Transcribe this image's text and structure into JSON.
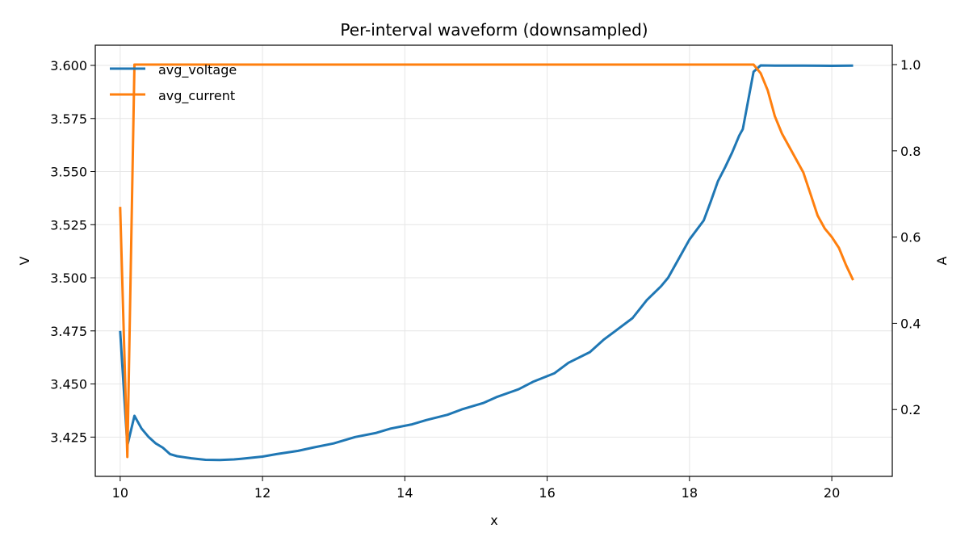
{
  "chart_data": {
    "type": "line",
    "title": "Per-interval waveform (downsampled)",
    "xlabel": "x",
    "ylabel_left": "V",
    "ylabel_right": "A",
    "xlim": [
      9.65,
      20.85
    ],
    "ylim_left": [
      3.4065,
      3.6095
    ],
    "ylim_right": [
      0.045,
      1.045
    ],
    "x_ticks": [
      "10",
      "12",
      "14",
      "16",
      "18",
      "20"
    ],
    "y_left_ticks": [
      "3.425",
      "3.450",
      "3.475",
      "3.500",
      "3.525",
      "3.550",
      "3.575",
      "3.600"
    ],
    "y_right_ticks": [
      "0.2",
      "0.4",
      "0.6",
      "0.8",
      "1.0"
    ],
    "grid": true,
    "legend_position": "top-left",
    "series": [
      {
        "name": "avg_voltage",
        "axis": "left",
        "color": "#1f77b4",
        "points": [
          [
            10.0,
            3.475
          ],
          [
            10.1,
            3.421
          ],
          [
            10.2,
            3.435
          ],
          [
            10.3,
            3.429
          ],
          [
            10.4,
            3.425
          ],
          [
            10.5,
            3.422
          ],
          [
            10.6,
            3.42
          ],
          [
            10.7,
            3.417
          ],
          [
            10.8,
            3.416
          ],
          [
            10.9,
            3.4155
          ],
          [
            11.0,
            3.415
          ],
          [
            11.2,
            3.4143
          ],
          [
            11.4,
            3.4142
          ],
          [
            11.6,
            3.4145
          ],
          [
            11.7,
            3.4148
          ],
          [
            12.0,
            3.4158
          ],
          [
            12.2,
            3.417
          ],
          [
            12.5,
            3.4185
          ],
          [
            12.7,
            3.42
          ],
          [
            13.0,
            3.422
          ],
          [
            13.1,
            3.423
          ],
          [
            13.3,
            3.425
          ],
          [
            13.6,
            3.427
          ],
          [
            13.8,
            3.429
          ],
          [
            14.1,
            3.431
          ],
          [
            14.3,
            3.433
          ],
          [
            14.6,
            3.4355
          ],
          [
            14.8,
            3.438
          ],
          [
            15.1,
            3.441
          ],
          [
            15.3,
            3.444
          ],
          [
            15.6,
            3.4475
          ],
          [
            15.8,
            3.451
          ],
          [
            16.1,
            3.455
          ],
          [
            16.3,
            3.46
          ],
          [
            16.6,
            3.465
          ],
          [
            16.8,
            3.471
          ],
          [
            17.0,
            3.476
          ],
          [
            17.2,
            3.481
          ],
          [
            17.4,
            3.4895
          ],
          [
            17.6,
            3.496
          ],
          [
            17.7,
            3.5
          ],
          [
            17.9,
            3.512
          ],
          [
            18.0,
            3.518
          ],
          [
            18.2,
            3.527
          ],
          [
            18.3,
            3.536
          ],
          [
            18.4,
            3.5455
          ],
          [
            18.5,
            3.552
          ],
          [
            18.6,
            3.559
          ],
          [
            18.7,
            3.567
          ],
          [
            18.75,
            3.57
          ],
          [
            18.9,
            3.597
          ],
          [
            19.0,
            3.6
          ],
          [
            19.2,
            3.5999
          ],
          [
            19.6,
            3.5999
          ],
          [
            20.0,
            3.5998
          ],
          [
            20.3,
            3.5999
          ]
        ]
      },
      {
        "name": "avg_current",
        "axis": "right",
        "color": "#ff7f0e",
        "points": [
          [
            10.0,
            0.67
          ],
          [
            10.1,
            0.09
          ],
          [
            10.2,
            1.0
          ],
          [
            18.9,
            1.0
          ],
          [
            19.0,
            0.98
          ],
          [
            19.1,
            0.94
          ],
          [
            19.2,
            0.88
          ],
          [
            19.3,
            0.84
          ],
          [
            19.4,
            0.81
          ],
          [
            19.5,
            0.78
          ],
          [
            19.6,
            0.75
          ],
          [
            19.7,
            0.7
          ],
          [
            19.8,
            0.65
          ],
          [
            19.9,
            0.62
          ],
          [
            20.0,
            0.6
          ],
          [
            20.1,
            0.575
          ],
          [
            20.2,
            0.535
          ],
          [
            20.3,
            0.5
          ]
        ]
      }
    ]
  }
}
